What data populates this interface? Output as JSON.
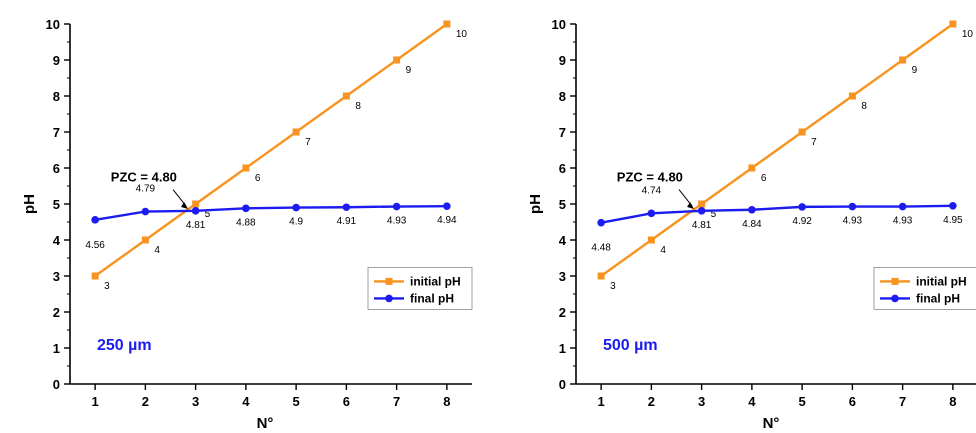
{
  "colors": {
    "initial": "#f7931e",
    "final": "#1c1cf0",
    "axis": "#000000",
    "sizeLabel": "#1c1cf0"
  },
  "chart_data": [
    {
      "type": "line",
      "xlabel": "N°",
      "ylabel": "pH",
      "xlim": [
        0.5,
        8.5
      ],
      "ylim": [
        0,
        10
      ],
      "xticks": [
        1,
        2,
        3,
        4,
        5,
        6,
        7,
        8
      ],
      "yticks": [
        0,
        1,
        2,
        3,
        4,
        5,
        6,
        7,
        8,
        9,
        10
      ],
      "grid": false,
      "legend": "lower-right",
      "size_label": "250 µm",
      "annotation": "PZC = 4.80",
      "series": [
        {
          "name": "initial pH",
          "marker": "square",
          "x": [
            1,
            2,
            3,
            4,
            5,
            6,
            7,
            8
          ],
          "values": [
            3,
            4,
            5,
            6,
            7,
            8,
            9,
            10
          ],
          "labels": [
            "3",
            "4",
            "5",
            "6",
            "7",
            "8",
            "9",
            "10"
          ]
        },
        {
          "name": "final pH",
          "marker": "circle",
          "x": [
            1,
            2,
            3,
            4,
            5,
            6,
            7,
            8
          ],
          "values": [
            4.56,
            4.79,
            4.81,
            4.88,
            4.9,
            4.91,
            4.93,
            4.94
          ],
          "labels": [
            "4.56",
            "4.79",
            "4.81",
            "4.88",
            "4.9",
            "4.91",
            "4.93",
            "4.94"
          ]
        }
      ]
    },
    {
      "type": "line",
      "xlabel": "N°",
      "ylabel": "pH",
      "xlim": [
        0.5,
        8.5
      ],
      "ylim": [
        0,
        10
      ],
      "xticks": [
        1,
        2,
        3,
        4,
        5,
        6,
        7,
        8
      ],
      "yticks": [
        0,
        1,
        2,
        3,
        4,
        5,
        6,
        7,
        8,
        9,
        10
      ],
      "grid": false,
      "legend": "lower-right",
      "size_label": "500 µm",
      "annotation": "PZC = 4.80",
      "series": [
        {
          "name": "initial pH",
          "marker": "square",
          "x": [
            1,
            2,
            3,
            4,
            5,
            6,
            7,
            8
          ],
          "values": [
            3,
            4,
            5,
            6,
            7,
            8,
            9,
            10
          ],
          "labels": [
            "3",
            "4",
            "5",
            "6",
            "7",
            "8",
            "9",
            "10"
          ]
        },
        {
          "name": "final pH",
          "marker": "circle",
          "x": [
            1,
            2,
            3,
            4,
            5,
            6,
            7,
            8
          ],
          "values": [
            4.48,
            4.74,
            4.81,
            4.84,
            4.92,
            4.93,
            4.93,
            4.95
          ],
          "labels": [
            "4.48",
            "4.74",
            "4.81",
            "4.84",
            "4.92",
            "4.93",
            "4.93",
            "4.95"
          ]
        }
      ]
    }
  ]
}
